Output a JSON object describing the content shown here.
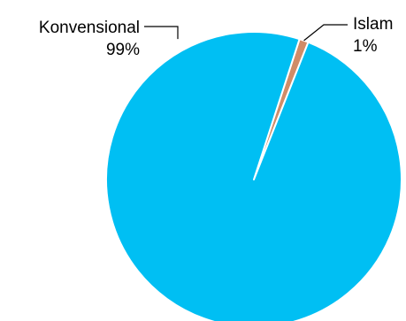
{
  "chart_data": {
    "type": "pie",
    "title": "",
    "slices": [
      {
        "label": "Konvensional",
        "value": 99,
        "value_label": "99%",
        "color": "#00BFF3"
      },
      {
        "label": "Islam",
        "value": 1,
        "value_label": "1%",
        "color": "#D08C68"
      }
    ],
    "legend": "none",
    "labels": "outside-with-leader-lines"
  }
}
